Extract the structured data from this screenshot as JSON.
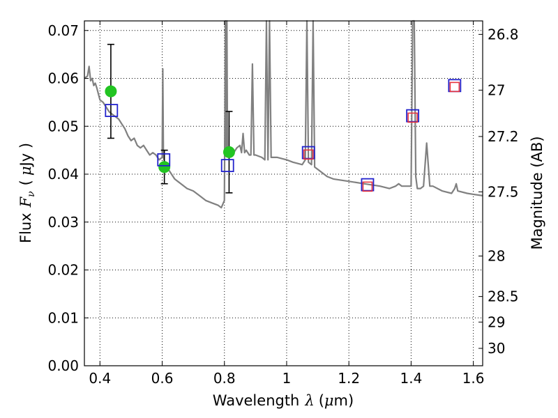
{
  "chart_data": {
    "type": "scatter",
    "xlabel_prefix": "Wavelength",
    "xlabel_symbol": "λ",
    "xlabel_unit_open": "(",
    "xlabel_unit_mu": "μ",
    "xlabel_unit_rest": "m)",
    "ylabel_prefix": "Flux",
    "ylabel_symbol": "F",
    "ylabel_subscript": "ν",
    "ylabel_unit_open": "(",
    "ylabel_unit_mu": "μ",
    "ylabel_unit_rest": "Jy )",
    "y2label": "Magnitude (AB)",
    "xlim": [
      0.35,
      1.63
    ],
    "ylim": [
      0.0,
      0.072
    ],
    "grid": true,
    "x_ticks": [
      {
        "v": 0.4,
        "label": "0.4"
      },
      {
        "v": 0.6,
        "label": "0.6"
      },
      {
        "v": 0.8,
        "label": "0.8"
      },
      {
        "v": 1.0,
        "label": "1"
      },
      {
        "v": 1.2,
        "label": "1.2"
      },
      {
        "v": 1.4,
        "label": "1.4"
      },
      {
        "v": 1.6,
        "label": "1.6"
      }
    ],
    "y_ticks": [
      {
        "v": 0.0,
        "label": "0.00"
      },
      {
        "v": 0.01,
        "label": "0.01"
      },
      {
        "v": 0.02,
        "label": "0.02"
      },
      {
        "v": 0.03,
        "label": "0.03"
      },
      {
        "v": 0.04,
        "label": "0.04"
      },
      {
        "v": 0.05,
        "label": "0.05"
      },
      {
        "v": 0.06,
        "label": "0.06"
      },
      {
        "v": 0.07,
        "label": "0.07"
      }
    ],
    "mag_ticks": [
      {
        "mag": 26.8,
        "label": "26.8"
      },
      {
        "mag": 27.0,
        "label": "27"
      },
      {
        "mag": 27.2,
        "label": "27.2"
      },
      {
        "mag": 27.5,
        "label": "27.5"
      },
      {
        "mag": 28.0,
        "label": "28"
      },
      {
        "mag": 28.5,
        "label": "28.5"
      },
      {
        "mag": 29.0,
        "label": "29"
      },
      {
        "mag": 30.0,
        "label": "30"
      }
    ],
    "series": [
      {
        "kind": "line",
        "color": "#808080",
        "x": [
          0.35,
          0.36,
          0.365,
          0.37,
          0.375,
          0.38,
          0.385,
          0.39,
          0.4,
          0.41,
          0.42,
          0.43,
          0.44,
          0.45,
          0.46,
          0.47,
          0.48,
          0.49,
          0.5,
          0.51,
          0.52,
          0.53,
          0.54,
          0.55,
          0.56,
          0.57,
          0.58,
          0.59,
          0.6,
          0.602,
          0.604,
          0.606,
          0.608,
          0.61,
          0.62,
          0.63,
          0.64,
          0.66,
          0.68,
          0.7,
          0.72,
          0.74,
          0.76,
          0.78,
          0.79,
          0.8,
          0.803,
          0.806,
          0.808,
          0.81,
          0.812,
          0.815,
          0.82,
          0.83,
          0.84,
          0.85,
          0.855,
          0.86,
          0.865,
          0.87,
          0.88,
          0.885,
          0.89,
          0.895,
          0.9,
          0.92,
          0.93,
          0.935,
          0.94,
          0.945,
          0.95,
          0.97,
          1.0,
          1.02,
          1.05,
          1.06,
          1.065,
          1.07,
          1.08,
          1.085,
          1.09,
          1.1,
          1.13,
          1.15,
          1.2,
          1.25,
          1.3,
          1.33,
          1.35,
          1.36,
          1.37,
          1.38,
          1.39,
          1.4,
          1.405,
          1.41,
          1.415,
          1.42,
          1.43,
          1.44,
          1.45,
          1.46,
          1.47,
          1.5,
          1.53,
          1.54,
          1.545,
          1.55,
          1.58,
          1.6,
          1.63
        ],
        "y": [
          0.06,
          0.0605,
          0.0625,
          0.0595,
          0.06,
          0.0585,
          0.059,
          0.058,
          0.0555,
          0.055,
          0.054,
          0.053,
          0.0525,
          0.052,
          0.0515,
          0.0505,
          0.0495,
          0.048,
          0.047,
          0.0475,
          0.046,
          0.0455,
          0.046,
          0.045,
          0.044,
          0.0445,
          0.044,
          0.043,
          0.0435,
          0.062,
          0.0435,
          0.043,
          0.0425,
          0.042,
          0.041,
          0.04,
          0.039,
          0.038,
          0.037,
          0.0365,
          0.0355,
          0.0345,
          0.034,
          0.0335,
          0.033,
          0.0345,
          0.075,
          0.044,
          0.075,
          0.0445,
          0.045,
          0.0445,
          0.045,
          0.0445,
          0.0455,
          0.046,
          0.0445,
          0.0485,
          0.0445,
          0.045,
          0.044,
          0.044,
          0.063,
          0.044,
          0.044,
          0.0435,
          0.043,
          0.075,
          0.043,
          0.075,
          0.0435,
          0.0435,
          0.043,
          0.0425,
          0.042,
          0.043,
          0.075,
          0.0425,
          0.042,
          0.075,
          0.0415,
          0.041,
          0.0395,
          0.039,
          0.0385,
          0.038,
          0.0375,
          0.037,
          0.0375,
          0.038,
          0.0375,
          0.0375,
          0.0375,
          0.0375,
          0.075,
          0.075,
          0.0395,
          0.037,
          0.037,
          0.0375,
          0.0465,
          0.0375,
          0.0375,
          0.0365,
          0.036,
          0.037,
          0.038,
          0.0365,
          0.036,
          0.0358,
          0.0355
        ]
      },
      {
        "kind": "points",
        "marker": "circle",
        "color": "#22c422",
        "x": [
          0.435,
          0.607,
          0.815
        ],
        "y": [
          0.0573,
          0.0415,
          0.0446
        ],
        "yerr": [
          0.0098,
          0.0035,
          0.0085
        ]
      },
      {
        "kind": "points",
        "marker": "square",
        "color": "#2222cc",
        "x": [
          0.437,
          0.605,
          0.81,
          1.07,
          1.26,
          1.405,
          1.54
        ],
        "y": [
          0.0533,
          0.043,
          0.0418,
          0.0445,
          0.0378,
          0.0522,
          0.0585
        ]
      },
      {
        "kind": "points",
        "marker": "square",
        "color": "#e8333d",
        "x": [
          1.07,
          1.26,
          1.405,
          1.54
        ],
        "y": [
          0.0441,
          0.0374,
          0.0518,
          0.0582
        ]
      }
    ]
  }
}
